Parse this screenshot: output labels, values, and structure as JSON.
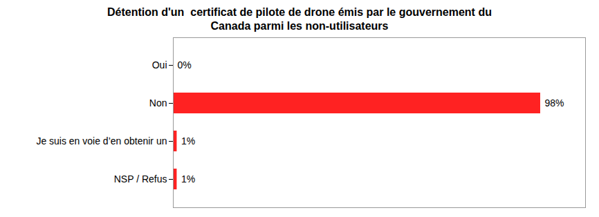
{
  "chart_data": {
    "type": "bar",
    "orientation": "horizontal",
    "title": "Détention d'un  certificat de pilote de drone émis par le gouvernement du\nCanada parmi les non-utilisateurs",
    "categories": [
      "NSP / Refus",
      "Je suis en voie d’en obtenir un",
      "Non",
      "Oui"
    ],
    "values": [
      1,
      1,
      98,
      0
    ],
    "value_labels": [
      "1%",
      "1%",
      "98%",
      "0%"
    ],
    "data_labels": true,
    "color": "#ff2222",
    "xlim": [
      0,
      110
    ],
    "tick_labels": "y",
    "grid": false
  }
}
